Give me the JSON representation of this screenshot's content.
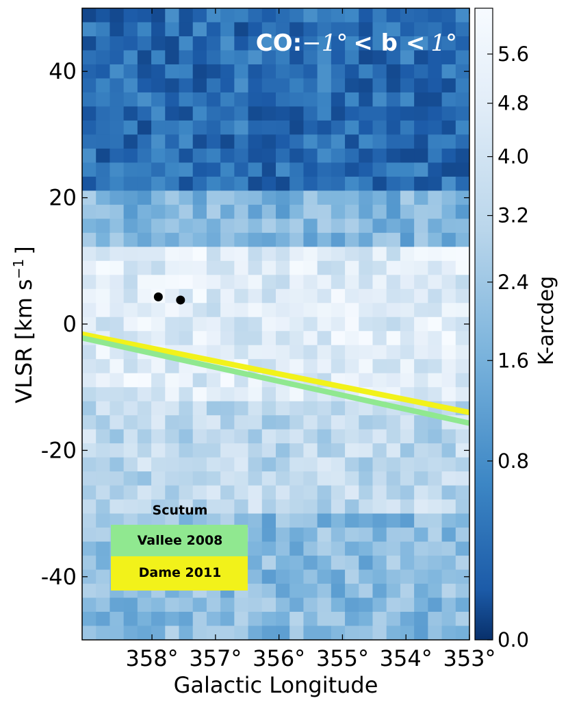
{
  "chart_data": {
    "type": "heatmap",
    "title": "CO: −1° < b < 1°",
    "title_parts": {
      "prefix": "CO:",
      "left": "−1°",
      "middle": "< b <",
      "right": "1°"
    },
    "xlabel": "Galactic Longitude",
    "ylabel": "VLSR [km s",
    "ylabel_unit_exp": "−1",
    "ylabel_close": "]",
    "x_range_deg": [
      359.1,
      353.0
    ],
    "x_axis_reversed": true,
    "y_range_kms": [
      -50,
      50
    ],
    "x_ticks": [
      {
        "value": 358,
        "label": "358°"
      },
      {
        "value": 357,
        "label": "357°"
      },
      {
        "value": 356,
        "label": "356°"
      },
      {
        "value": 355,
        "label": "355°"
      },
      {
        "value": 354,
        "label": "354°"
      },
      {
        "value": 353,
        "label": "353°"
      }
    ],
    "y_ticks": [
      {
        "value": 40,
        "label": "40"
      },
      {
        "value": 20,
        "label": "20"
      },
      {
        "value": 0,
        "label": "0"
      },
      {
        "value": -20,
        "label": "-20"
      },
      {
        "value": -40,
        "label": "-40"
      }
    ],
    "colorbar": {
      "label": "K-arcdeg",
      "ticks": [
        {
          "value": 5.6,
          "label": "5.6"
        },
        {
          "value": 4.8,
          "label": "4.8"
        },
        {
          "value": 4.0,
          "label": "4.0"
        },
        {
          "value": 3.2,
          "label": "3.2"
        },
        {
          "value": 2.4,
          "label": "2.4"
        },
        {
          "value": 1.6,
          "label": "1.6"
        },
        {
          "value": 0.8,
          "label": "0.8"
        },
        {
          "value": 0.0,
          "label": "0.0"
        }
      ],
      "colormap": "Blues_r",
      "dark_color": "#08306b",
      "light_color": "#f7fbff"
    },
    "grid": false,
    "heatmap_grid": {
      "cols": 28,
      "rows": 45
    },
    "series": [
      {
        "name": "Vallee 2008",
        "color": "#90e890",
        "points": [
          {
            "l": 359.1,
            "v": -2.2
          },
          {
            "l": 353.0,
            "v": -15.7
          }
        ]
      },
      {
        "name": "Dame 2011",
        "color": "#f2f21a",
        "points": [
          {
            "l": 359.1,
            "v": -1.6
          },
          {
            "l": 353.0,
            "v": -14.0
          }
        ]
      }
    ],
    "markers": [
      {
        "l": 357.9,
        "v": 4.3,
        "color": "#000000"
      },
      {
        "l": 357.55,
        "v": 3.8,
        "color": "#000000"
      }
    ],
    "legend": {
      "title": "Scutum",
      "placement": "lower-left",
      "entries": [
        {
          "label": "Vallee 2008",
          "color": "#90e890"
        },
        {
          "label": "Dame 2011",
          "color": "#f2f21a"
        }
      ]
    }
  }
}
